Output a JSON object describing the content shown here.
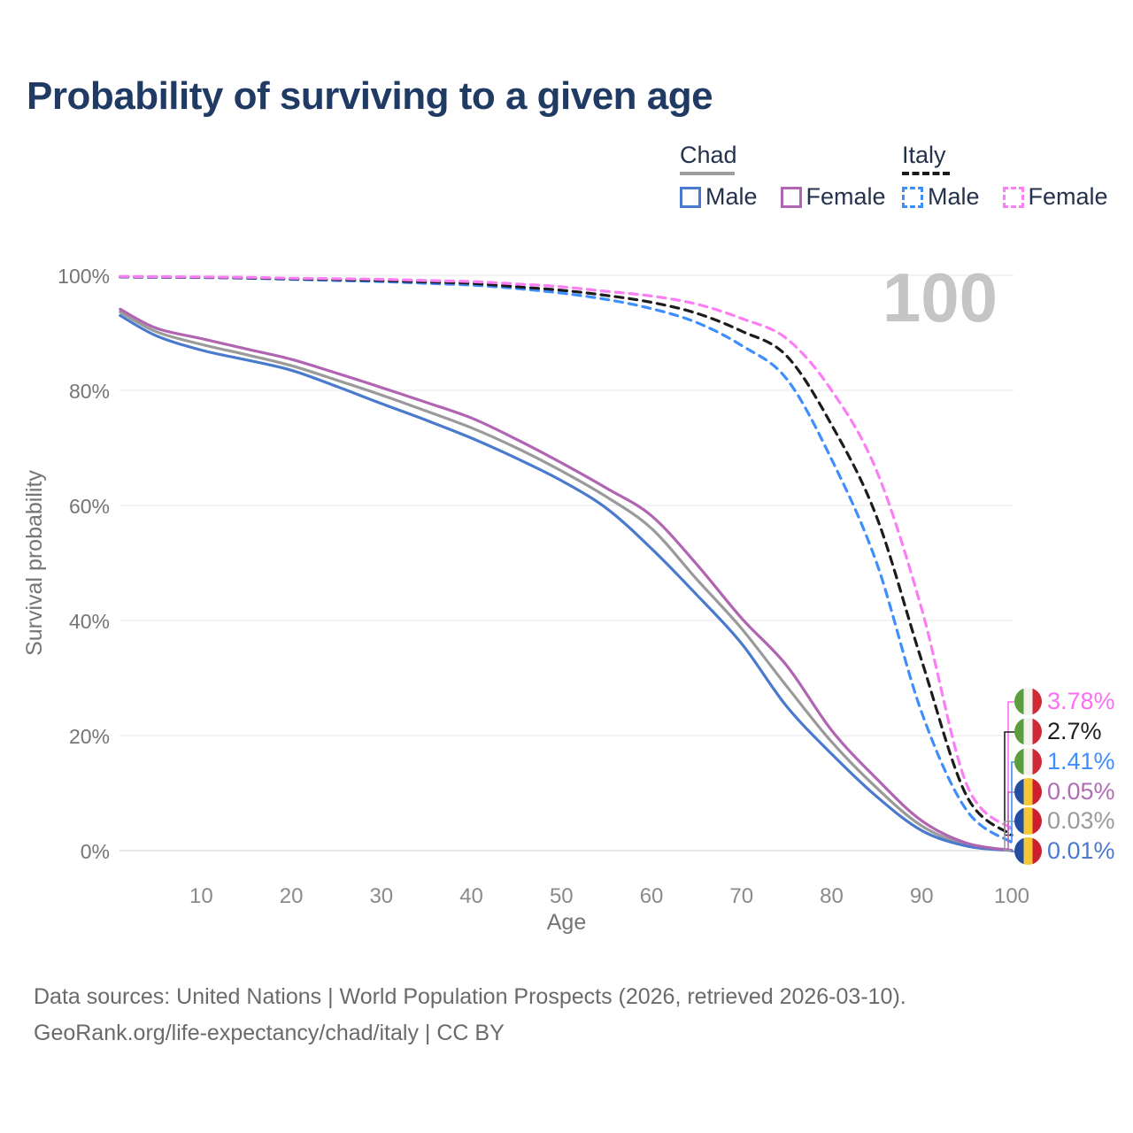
{
  "title": "Probability of surviving to a given age",
  "watermark": "100",
  "colors": {
    "title_text": "#1f3a63",
    "axis_text": "#757575",
    "tick_text": "#8a8a8a",
    "grid": "#ececec",
    "grid_zero": "#d9d9d9",
    "watermark": "#c5c5c5",
    "footer_text": "#6a6a6a",
    "legend_text": "#24324e"
  },
  "legend": {
    "groups": [
      {
        "country": "Chad",
        "underline_style": "solid",
        "items": [
          {
            "label": "Male",
            "color": "#4a7ace",
            "dashed": false
          },
          {
            "label": "Female",
            "color": "#b164b2",
            "dashed": false
          }
        ]
      },
      {
        "country": "Italy",
        "underline_style": "dashed",
        "items": [
          {
            "label": "Male",
            "color": "#3f8efd",
            "dashed": true
          },
          {
            "label": "Female",
            "color": "#fb7ef5",
            "dashed": true
          }
        ]
      }
    ]
  },
  "chart_data": {
    "type": "line",
    "title": "Probability of surviving to a given age",
    "xlabel": "Age",
    "ylabel": "Survival probability",
    "xlim": [
      0,
      100
    ],
    "ylim": [
      0,
      100
    ],
    "grid": "horizontal-only",
    "x_ticks": {
      "values": [
        10,
        20,
        30,
        40,
        50,
        60,
        70,
        80,
        90,
        100
      ],
      "labels": [
        "10",
        "20",
        "30",
        "40",
        "50",
        "60",
        "70",
        "80",
        "90",
        "100"
      ]
    },
    "y_ticks": {
      "values": [
        0,
        20,
        40,
        60,
        80,
        100
      ],
      "labels": [
        "0%",
        "20%",
        "40%",
        "60%",
        "80%",
        "100%"
      ]
    },
    "x": [
      1,
      5,
      10,
      15,
      20,
      25,
      30,
      35,
      40,
      45,
      50,
      55,
      60,
      65,
      70,
      75,
      80,
      85,
      90,
      95,
      100
    ],
    "series": [
      {
        "name": "Chad Both sexes",
        "country": "Chad",
        "sex": "Both",
        "color": "#9a9a9a",
        "dashed": false,
        "end_value": "0.03%",
        "values": [
          93.6,
          90.2,
          88,
          86.2,
          84.3,
          81.8,
          79.2,
          76.4,
          73.5,
          70,
          66,
          61.5,
          56,
          47.2,
          38.6,
          28.6,
          18.9,
          10.9,
          4.3,
          1,
          0.03
        ]
      },
      {
        "name": "Chad Male",
        "country": "Chad",
        "sex": "Male",
        "color": "#4a7ace",
        "dashed": false,
        "end_value": "0.01%",
        "values": [
          93,
          89.5,
          87,
          85.3,
          83.5,
          80.7,
          77.7,
          74.8,
          71.7,
          68.2,
          64.3,
          59.5,
          52.5,
          44.5,
          36,
          25.1,
          16.8,
          9.4,
          3.5,
          0.8,
          0.01
        ]
      },
      {
        "name": "Chad Female",
        "country": "Chad",
        "sex": "Female",
        "color": "#b164b2",
        "dashed": false,
        "end_value": "0.05%",
        "values": [
          94.1,
          90.8,
          89,
          87.2,
          85.4,
          83,
          80.5,
          77.9,
          75.2,
          71.5,
          67.4,
          63,
          58.2,
          49.8,
          40.4,
          32.2,
          20.9,
          12.5,
          5.2,
          1.3,
          0.05
        ]
      },
      {
        "name": "Italy Male",
        "country": "Italy",
        "sex": "Male",
        "color": "#3f8efd",
        "dashed": true,
        "end_value": "1.41%",
        "values": [
          99.7,
          99.65,
          99.6,
          99.5,
          99.3,
          99.1,
          98.9,
          98.6,
          98.3,
          97.7,
          96.9,
          95.8,
          94.2,
          91.8,
          87.8,
          82,
          68,
          50,
          24,
          7,
          1.41
        ]
      },
      {
        "name": "Italy Both sexes",
        "country": "Italy",
        "sex": "Both",
        "color": "#1c1c1c",
        "dashed": true,
        "end_value": "2.7%",
        "values": [
          99.75,
          99.7,
          99.65,
          99.55,
          99.4,
          99.25,
          99.1,
          98.85,
          98.6,
          98,
          97.4,
          96.5,
          95.3,
          93.4,
          90.3,
          86,
          74,
          58,
          33,
          9.5,
          2.7
        ]
      },
      {
        "name": "Italy Female",
        "country": "Italy",
        "sex": "Female",
        "color": "#fb7ef5",
        "dashed": true,
        "end_value": "3.78%",
        "values": [
          99.8,
          99.75,
          99.7,
          99.65,
          99.5,
          99.4,
          99.3,
          99.1,
          98.9,
          98.5,
          98,
          97.2,
          96.4,
          95,
          92.5,
          89,
          80,
          66,
          42,
          11.5,
          3.78
        ]
      }
    ]
  },
  "end_labels": [
    {
      "value": "3.78%",
      "flag": "italy",
      "color": "#fb6ef2",
      "series": "Italy Female"
    },
    {
      "value": "2.7%",
      "flag": "italy",
      "color": "#1f1f1f",
      "series": "Italy Both sexes"
    },
    {
      "value": "1.41%",
      "flag": "italy",
      "color": "#3f8efd",
      "series": "Italy Male"
    },
    {
      "value": "0.05%",
      "flag": "chad",
      "color": "#b06cb4",
      "series": "Chad Female"
    },
    {
      "value": "0.03%",
      "flag": "chad",
      "color": "#9a9a9a",
      "series": "Chad Both sexes"
    },
    {
      "value": "0.01%",
      "flag": "chad",
      "color": "#4a7ace",
      "series": "Chad Male"
    }
  ],
  "flags": {
    "italy": [
      "#5b9e3d",
      "#f4f2ee",
      "#ce2b37"
    ],
    "chad": [
      "#234ea0",
      "#f5c733",
      "#cc1f30"
    ]
  },
  "footer": {
    "line1": "Data sources: United Nations | World Population Prospects (2026, retrieved 2026-03-10).",
    "line2": "GeoRank.org/life-expectancy/chad/italy | CC BY"
  }
}
